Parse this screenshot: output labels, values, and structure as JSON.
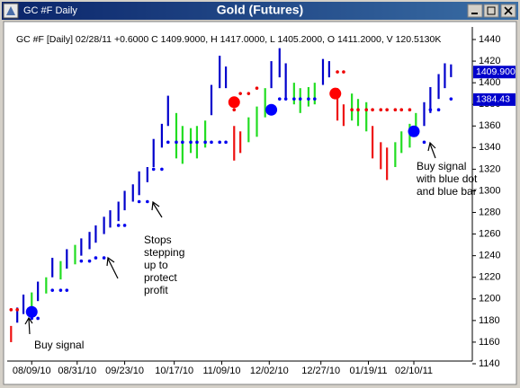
{
  "window_title": "Gold (Futures)",
  "tab_label": "GC #F Daily",
  "chart_data": {
    "type": "hilo",
    "header_info": "GC #F [Daily] 02/28/11  +0.6000 C 1409.9000, H 1417.0000, L 1405.2000, O 1411.2000, V 120.5130K",
    "xlim": [
      "07/29/10",
      "03/09/11"
    ],
    "xticks": [
      "08/09/10",
      "08/31/10",
      "09/23/10",
      "10/17/10",
      "11/09/10",
      "12/02/10",
      "12/27/10",
      "01/19/11",
      "02/10/11"
    ],
    "ylim": [
      1140,
      1440
    ],
    "yticks": [
      1140,
      1160,
      1180,
      1200,
      1220,
      1240,
      1260,
      1280,
      1300,
      1320,
      1340,
      1360,
      1380,
      1400,
      1420,
      1440
    ],
    "grid": false,
    "series": [
      {
        "color": "#0000cc",
        "x": [
          "08/02/10",
          "08/05/10",
          "08/12/10",
          "08/19/10",
          "08/26/10",
          "09/02/10",
          "09/06/10",
          "09/09/10",
          "09/13/10",
          "09/16/10",
          "09/20/10",
          "09/23/10",
          "09/27/10",
          "09/30/10",
          "10/04/10",
          "10/07/10",
          "10/11/10",
          "10/14/10",
          "11/04/10",
          "11/08/10",
          "11/11/10",
          "12/03/10",
          "12/07/10",
          "12/10/10",
          "12/28/10",
          "12/31/10",
          "02/15/11",
          "02/18/11",
          "02/22/11",
          "02/25/11",
          "02/28/11"
        ],
        "high": [
          1192,
          1204,
          1216,
          1238,
          1246,
          1256,
          1262,
          1268,
          1276,
          1282,
          1290,
          1300,
          1306,
          1318,
          1322,
          1348,
          1362,
          1388,
          1398,
          1425,
          1415,
          1420,
          1432,
          1418,
          1422,
          1420,
          1382,
          1396,
          1408,
          1418,
          1417
        ],
        "low": [
          1178,
          1186,
          1198,
          1220,
          1228,
          1240,
          1246,
          1252,
          1260,
          1266,
          1272,
          1282,
          1290,
          1296,
          1308,
          1322,
          1340,
          1360,
          1370,
          1395,
          1395,
          1395,
          1405,
          1385,
          1398,
          1405,
          1360,
          1372,
          1385,
          1395,
          1405.2
        ]
      },
      {
        "color": "#22dd22",
        "x": [
          "08/09/10",
          "08/16/10",
          "08/23/10",
          "08/30/10",
          "10/18/10",
          "10/21/10",
          "10/25/10",
          "10/28/10",
          "11/01/10",
          "11/22/10",
          "11/26/10",
          "11/30/10",
          "12/14/10",
          "12/17/10",
          "12/21/10",
          "12/24/10",
          "01/11/11",
          "01/14/11",
          "01/18/11",
          "02/01/11",
          "02/04/11",
          "02/08/11",
          "02/11/11"
        ],
        "high": [
          1206,
          1220,
          1235,
          1250,
          1372,
          1360,
          1358,
          1360,
          1365,
          1368,
          1378,
          1395,
          1400,
          1395,
          1396,
          1400,
          1390,
          1385,
          1382,
          1345,
          1355,
          1362,
          1372
        ],
        "low": [
          1188,
          1205,
          1218,
          1232,
          1330,
          1325,
          1335,
          1330,
          1340,
          1345,
          1350,
          1368,
          1380,
          1372,
          1378,
          1380,
          1365,
          1360,
          1355,
          1322,
          1335,
          1340,
          1350
        ]
      },
      {
        "color": "#ee1111",
        "x": [
          "07/30/10",
          "11/15/10",
          "11/18/10",
          "01/04/11",
          "01/07/11",
          "01/21/11",
          "01/25/11",
          "01/28/11"
        ],
        "high": [
          1175,
          1360,
          1355,
          1395,
          1380,
          1360,
          1345,
          1340
        ],
        "low": [
          1160,
          1328,
          1335,
          1365,
          1360,
          1330,
          1320,
          1310
        ]
      }
    ],
    "stops": [
      {
        "color": "#0000ee",
        "x": [
          "08/09/10",
          "08/12/10",
          "08/19/10",
          "08/23/10",
          "08/26/10",
          "09/02/10",
          "09/06/10",
          "09/09/10",
          "09/13/10",
          "09/20/10",
          "09/23/10",
          "09/30/10",
          "10/04/10",
          "10/07/10",
          "10/11/10",
          "10/14/10",
          "10/18/10",
          "10/21/10",
          "10/25/10",
          "10/28/10",
          "11/01/10",
          "11/04/10",
          "11/08/10",
          "11/11/10",
          "12/07/10",
          "12/10/10",
          "12/14/10",
          "12/17/10",
          "12/21/10",
          "12/24/10",
          "02/15/11",
          "02/18/11",
          "02/22/11",
          "02/28/11"
        ],
        "values": [
          1182,
          1182,
          1208,
          1208,
          1208,
          1235,
          1235,
          1238,
          1238,
          1268,
          1268,
          1290,
          1290,
          1320,
          1320,
          1345,
          1345,
          1345,
          1345,
          1345,
          1345,
          1345,
          1345,
          1345,
          1385,
          1385,
          1385,
          1385,
          1385,
          1385,
          1345,
          1375,
          1375,
          1385
        ]
      },
      {
        "color": "#ee0000",
        "x": [
          "07/30/10",
          "08/02/10",
          "11/15/10",
          "11/18/10",
          "11/22/10",
          "11/26/10",
          "01/04/11",
          "01/07/11",
          "01/11/11",
          "01/14/11",
          "01/18/11",
          "01/21/11",
          "01/25/11",
          "01/28/11",
          "02/01/11",
          "02/04/11",
          "02/08/11"
        ],
        "values": [
          1190,
          1190,
          1375,
          1390,
          1390,
          1395,
          1410,
          1410,
          1375,
          1375,
          1375,
          1375,
          1375,
          1375,
          1375,
          1375,
          1375
        ]
      }
    ],
    "signals": {
      "x": [
        "08/09/10",
        "11/15/10",
        "12/03/10",
        "01/03/11",
        "02/10/11"
      ],
      "values": [
        1188,
        1382,
        1375,
        1390,
        1355
      ],
      "colors": [
        "#0000ff",
        "#ff0000",
        "#0000ff",
        "#ff0000",
        "#0000ff"
      ]
    },
    "price_tags": [
      {
        "value": 1409.9,
        "label": "1409.900",
        "color": "#0000cc"
      },
      {
        "value": 1384.43,
        "label": "1384.43",
        "color": "#0000cc"
      }
    ],
    "annotations": [
      {
        "lines": [
          "Buy signal"
        ]
      },
      {
        "lines": [
          "Stops",
          "stepping",
          "up to",
          "protect",
          "profit"
        ]
      },
      {
        "lines": [
          "Buy signal",
          "with blue dot",
          "and blue bar"
        ]
      }
    ]
  }
}
